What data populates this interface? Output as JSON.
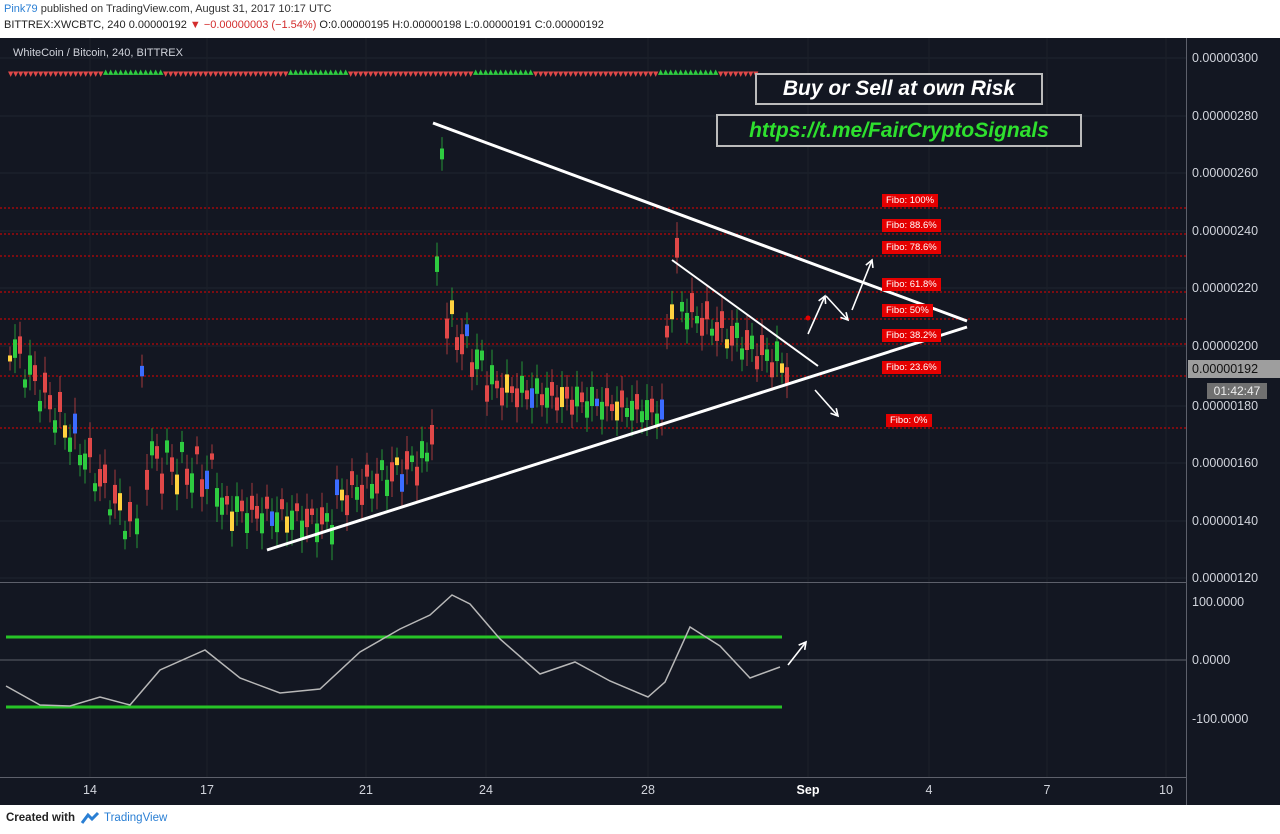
{
  "header": {
    "user": "Pink79",
    "published": "published on TradingView.com, August 31, 2017 10:17 UTC",
    "symbol_line": "BITTREX:XWCBTC, 240  0.00000192",
    "change": "▼ −0.00000003 (−1.54%)",
    "ohlc": " O:0.00000195 H:0.00000198 L:0.00000191 C:0.00000192"
  },
  "chart": {
    "symbol_title": "WhiteCoin / Bitcoin, 240, BITTREX",
    "price_labels": [
      "0.00000300",
      "0.00000280",
      "0.00000260",
      "0.00000240",
      "0.00000220",
      "0.00000200",
      "0.00000180",
      "0.00000160",
      "0.00000140",
      "0.00000120"
    ],
    "current_price": "0.00000192",
    "countdown": "01:42:47",
    "time_labels": [
      "14",
      "17",
      "21",
      "24",
      "28",
      "Sep",
      "4",
      "7",
      "10"
    ],
    "fibo_labels": [
      "Fibo:  100%",
      "Fibo:  88.6%",
      "Fibo:  78.6%",
      "Fibo:  61.8%",
      "Fibo:  50%",
      "Fibo:  38.2%",
      "Fibo:  23.6%",
      "Fibo:   0%"
    ],
    "osc_labels": [
      "100.0000",
      "0.0000",
      "-100.0000"
    ],
    "banner_risk": "Buy or Sell at own Risk",
    "banner_link": "https://t.me/FairCryptoSignals",
    "colors": {
      "bg": "#131722",
      "up": "#2ecc40",
      "down": "#e04848",
      "fibo": "#e50000",
      "trend": "#ffffff",
      "osc_band": "#27c427"
    }
  },
  "footer": {
    "created_with": "Created with",
    "brand": "TradingView"
  }
}
